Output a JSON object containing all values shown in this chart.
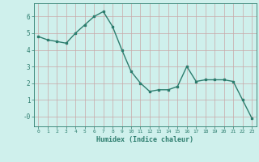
{
  "x": [
    0,
    1,
    2,
    3,
    4,
    5,
    6,
    7,
    8,
    9,
    10,
    11,
    12,
    13,
    14,
    15,
    16,
    17,
    18,
    19,
    20,
    21,
    22,
    23
  ],
  "y": [
    4.8,
    4.6,
    4.5,
    4.4,
    5.0,
    5.5,
    6.0,
    6.3,
    5.4,
    4.0,
    2.7,
    2.0,
    1.5,
    1.6,
    1.6,
    1.8,
    3.0,
    2.1,
    2.2,
    2.2,
    2.2,
    2.1,
    1.0,
    -0.1
  ],
  "xlabel": "Humidex (Indice chaleur)",
  "xlim": [
    -0.5,
    23.5
  ],
  "ylim": [
    -0.6,
    6.8
  ],
  "yticks": [
    0,
    1,
    2,
    3,
    4,
    5,
    6
  ],
  "ytick_labels": [
    "-0",
    "1",
    "2",
    "3",
    "4",
    "5",
    "6"
  ],
  "xticks": [
    0,
    1,
    2,
    3,
    4,
    5,
    6,
    7,
    8,
    9,
    10,
    11,
    12,
    13,
    14,
    15,
    16,
    17,
    18,
    19,
    20,
    21,
    22,
    23
  ],
  "line_color": "#2d7d6e",
  "marker": "s",
  "marker_size": 2.0,
  "bg_color": "#cff0ec",
  "grid_color": "#c8a8a8",
  "axis_label_color": "#2d7d6e",
  "tick_label_color": "#2d7d6e",
  "line_width": 1.0
}
